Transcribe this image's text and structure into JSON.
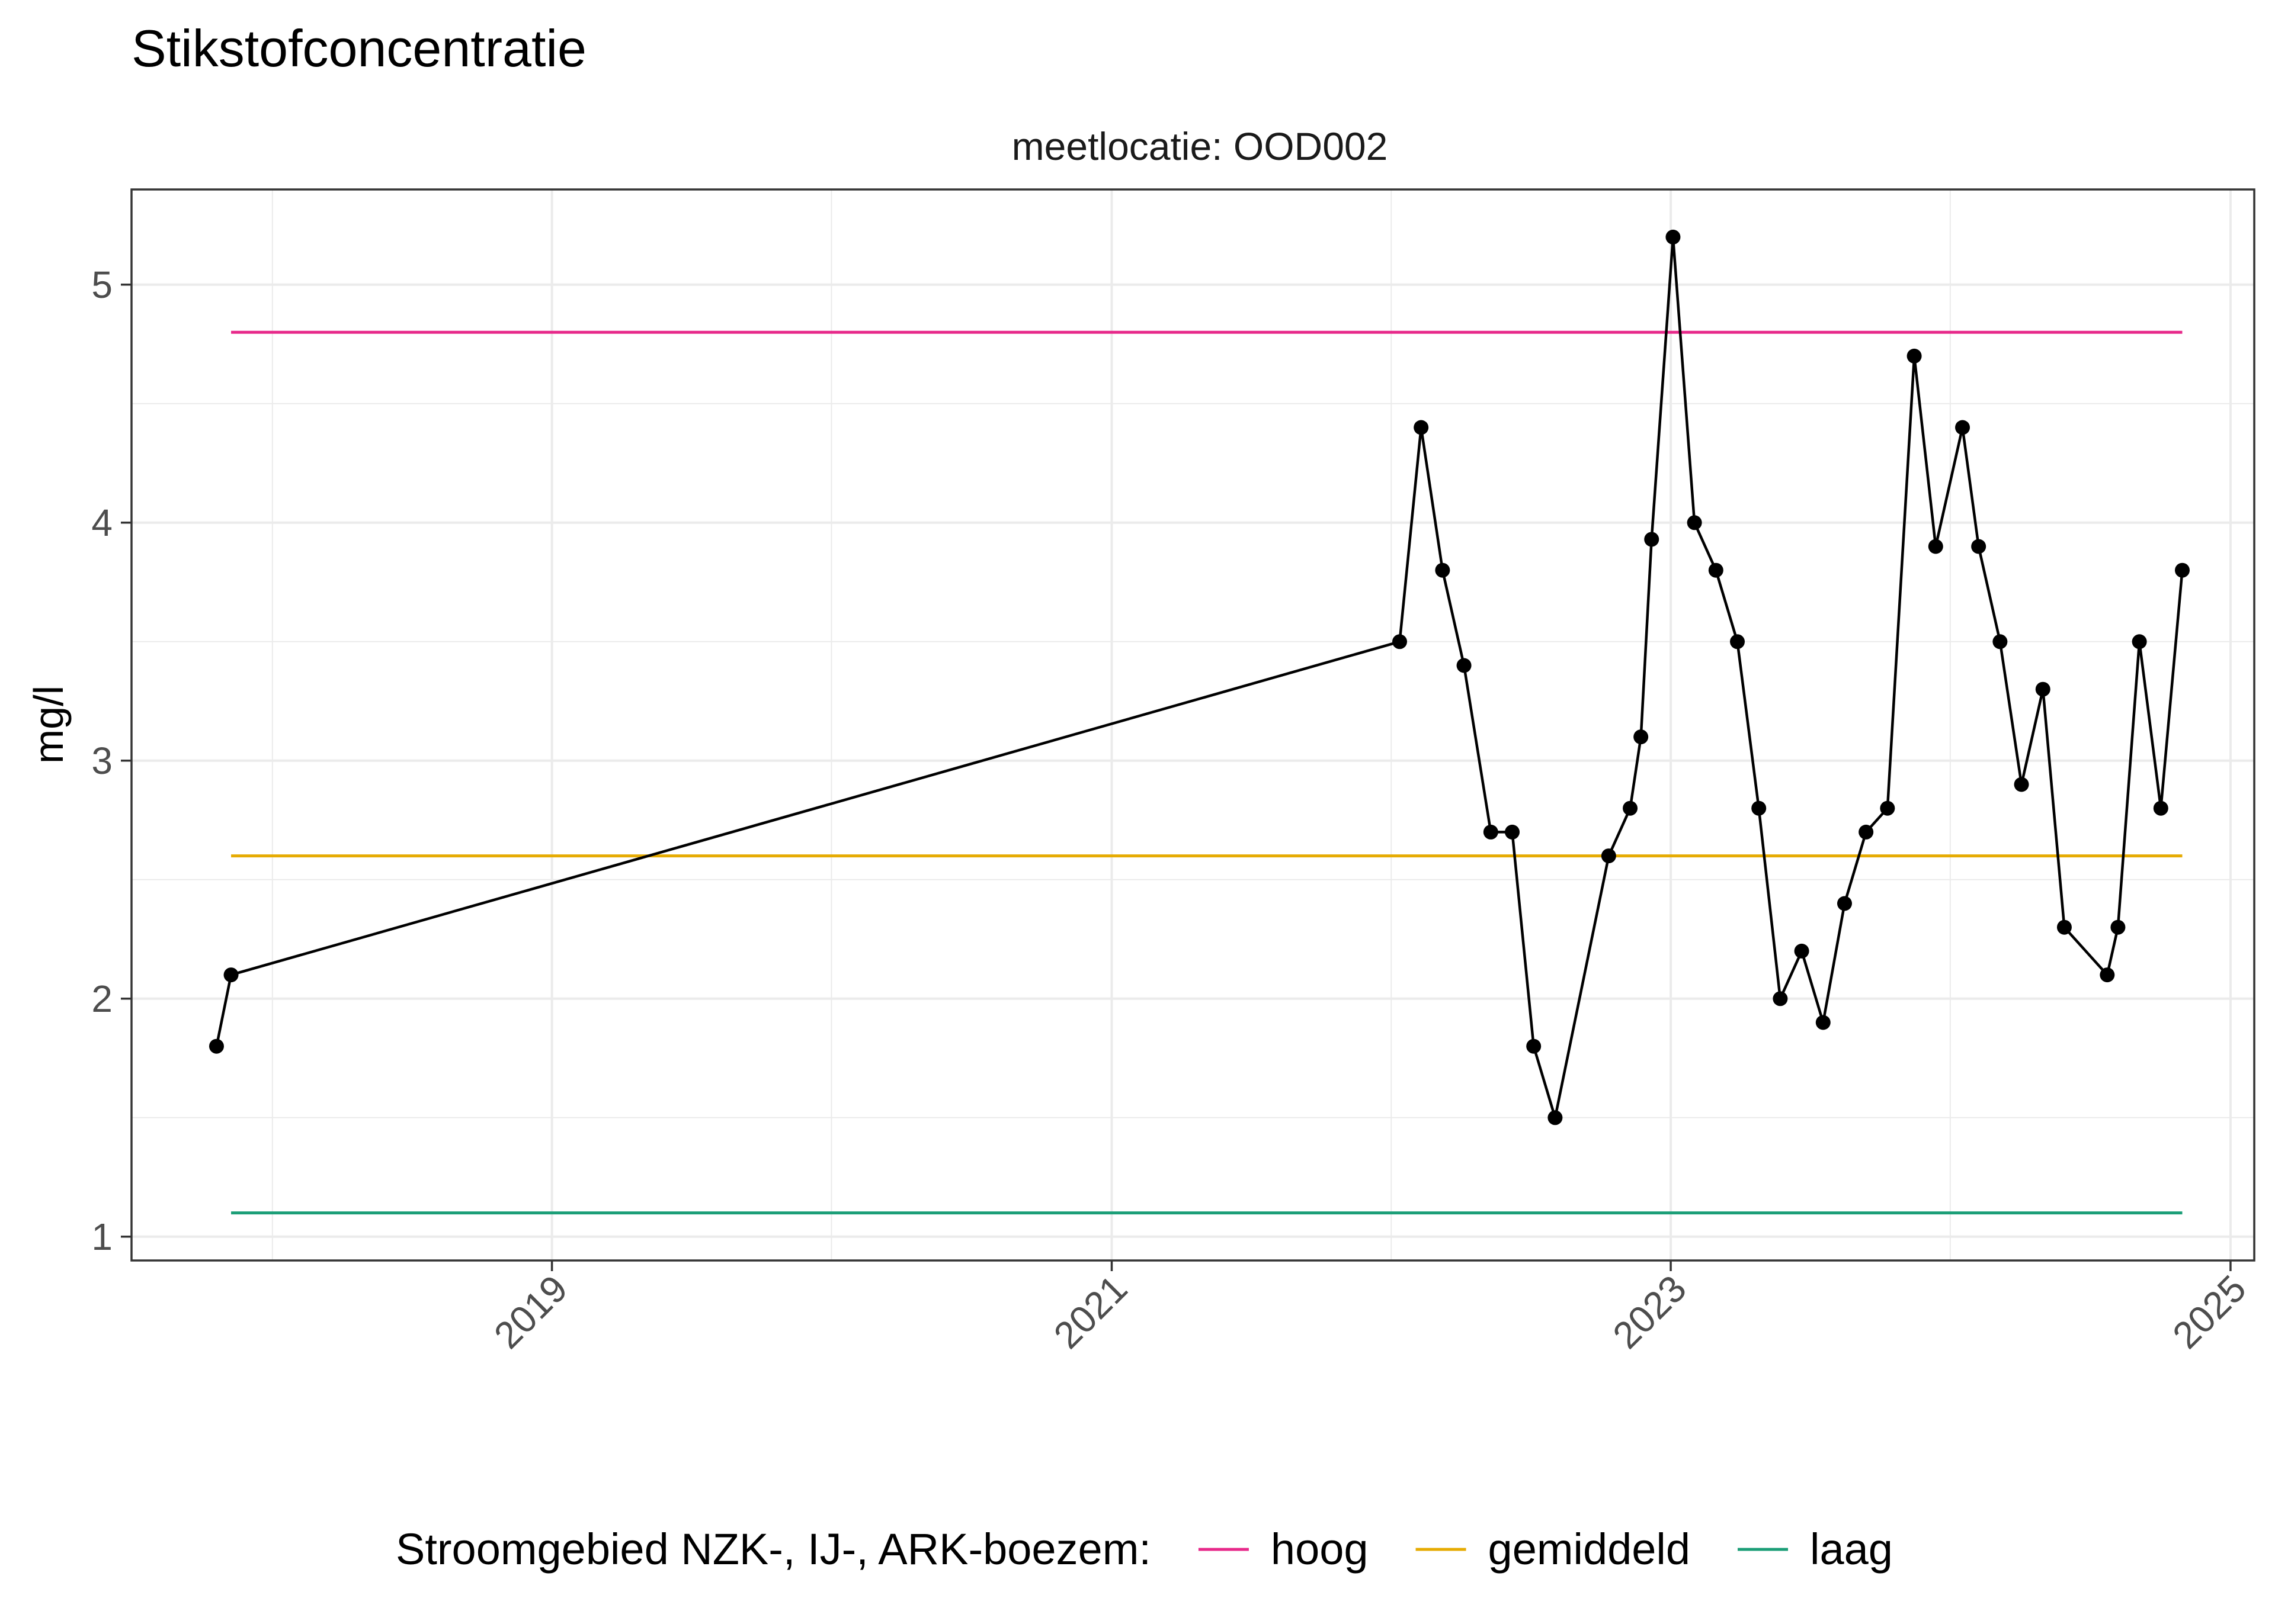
{
  "chart_data": {
    "type": "line",
    "title": "Stikstofconcentratie",
    "subtitle": "meetlocatie: OOD002",
    "xlabel": "",
    "ylabel": "mg/l",
    "xlim": [
      "2017-07-01",
      "2025-02-01"
    ],
    "ylim": [
      0.9,
      5.4
    ],
    "x_ticks": [
      "2019",
      "2021",
      "2023",
      "2025"
    ],
    "y_ticks": [
      1,
      2,
      3,
      4,
      5
    ],
    "grid": true,
    "colors": {
      "series": "#000000",
      "hoog": "#E7298A",
      "gemiddeld": "#E6AB02",
      "laag": "#1B9E77",
      "grid": "#ebebeb"
    },
    "series": [
      {
        "points": [
          {
            "x": "2017-10-20",
            "y": 1.8
          },
          {
            "x": "2017-11-08",
            "y": 2.1
          },
          {
            "x": "2022-01-12",
            "y": 3.5
          },
          {
            "x": "2022-02-09",
            "y": 4.4
          },
          {
            "x": "2022-03-09",
            "y": 3.8
          },
          {
            "x": "2022-04-06",
            "y": 3.4
          },
          {
            "x": "2022-05-11",
            "y": 2.7
          },
          {
            "x": "2022-06-08",
            "y": 2.7
          },
          {
            "x": "2022-07-06",
            "y": 1.8
          },
          {
            "x": "2022-08-03",
            "y": 1.5
          },
          {
            "x": "2022-10-12",
            "y": 2.6
          },
          {
            "x": "2022-11-09",
            "y": 2.8
          },
          {
            "x": "2022-11-23",
            "y": 3.1
          },
          {
            "x": "2022-12-07",
            "y": 3.93
          },
          {
            "x": "2023-01-04",
            "y": 5.2
          },
          {
            "x": "2023-02-01",
            "y": 4.0
          },
          {
            "x": "2023-03-01",
            "y": 3.8
          },
          {
            "x": "2023-03-29",
            "y": 3.5
          },
          {
            "x": "2023-04-26",
            "y": 2.8
          },
          {
            "x": "2023-05-24",
            "y": 2.0
          },
          {
            "x": "2023-06-21",
            "y": 2.2
          },
          {
            "x": "2023-07-19",
            "y": 1.9
          },
          {
            "x": "2023-08-16",
            "y": 2.4
          },
          {
            "x": "2023-09-13",
            "y": 2.7
          },
          {
            "x": "2023-10-11",
            "y": 2.8
          },
          {
            "x": "2023-11-15",
            "y": 4.7
          },
          {
            "x": "2023-12-13",
            "y": 3.9
          },
          {
            "x": "2024-01-17",
            "y": 4.4
          },
          {
            "x": "2024-02-07",
            "y": 3.9
          },
          {
            "x": "2024-03-06",
            "y": 3.5
          },
          {
            "x": "2024-04-03",
            "y": 2.9
          },
          {
            "x": "2024-05-01",
            "y": 3.3
          },
          {
            "x": "2024-05-29",
            "y": 2.3
          },
          {
            "x": "2024-07-24",
            "y": 2.1
          },
          {
            "x": "2024-08-07",
            "y": 2.3
          },
          {
            "x": "2024-09-04",
            "y": 3.5
          },
          {
            "x": "2024-10-02",
            "y": 2.8
          },
          {
            "x": "2024-10-30",
            "y": 3.8
          }
        ]
      }
    ],
    "reference_lines": [
      {
        "name": "hoog",
        "y": 4.8,
        "x_start": "2017-11-08",
        "x_end": "2024-10-30"
      },
      {
        "name": "gemiddeld",
        "y": 2.6,
        "x_start": "2017-11-08",
        "x_end": "2024-10-30"
      },
      {
        "name": "laag",
        "y": 1.1,
        "x_start": "2017-11-08",
        "x_end": "2024-10-30"
      }
    ],
    "legend": {
      "position": "bottom",
      "title": "Stroomgebied NZK-, IJ-, ARK-boezem:",
      "entries": [
        "hoog",
        "gemiddeld",
        "laag"
      ]
    }
  }
}
